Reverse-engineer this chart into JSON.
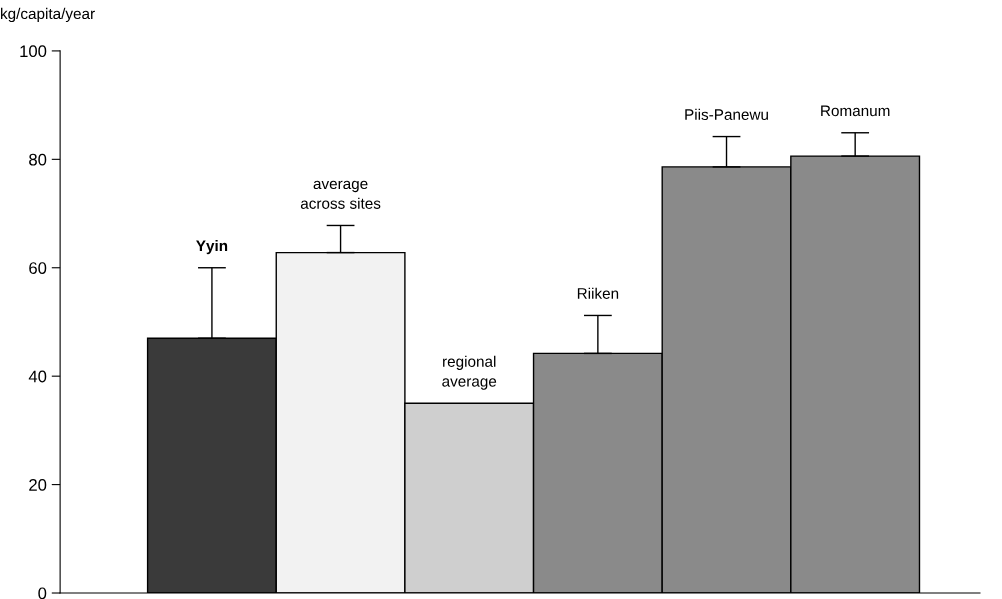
{
  "chart_data": {
    "type": "bar",
    "ylabel": "kg/capita/year",
    "categories": [
      "Yyin",
      "average\nacross sites",
      "regional\naverage",
      "Riiken",
      "Piis-Panewu",
      "Romanum"
    ],
    "values": [
      47,
      62.8,
      35,
      44.2,
      78.6,
      80.6
    ],
    "errors": [
      [
        47,
        60
      ],
      [
        62.8,
        67.8
      ],
      null,
      [
        44.2,
        51.2
      ],
      [
        78.6,
        84.2
      ],
      [
        80.6,
        84.9
      ]
    ],
    "colors": [
      "#3a3a3a",
      "#f2f2f2",
      "#cfcfcf",
      "#8a8a8a",
      "#8a8a8a",
      "#8a8a8a"
    ],
    "ylim": [
      0,
      100
    ],
    "yticks": [
      0,
      20,
      40,
      60,
      80,
      100
    ],
    "grid": false,
    "tick_labels": "y"
  }
}
